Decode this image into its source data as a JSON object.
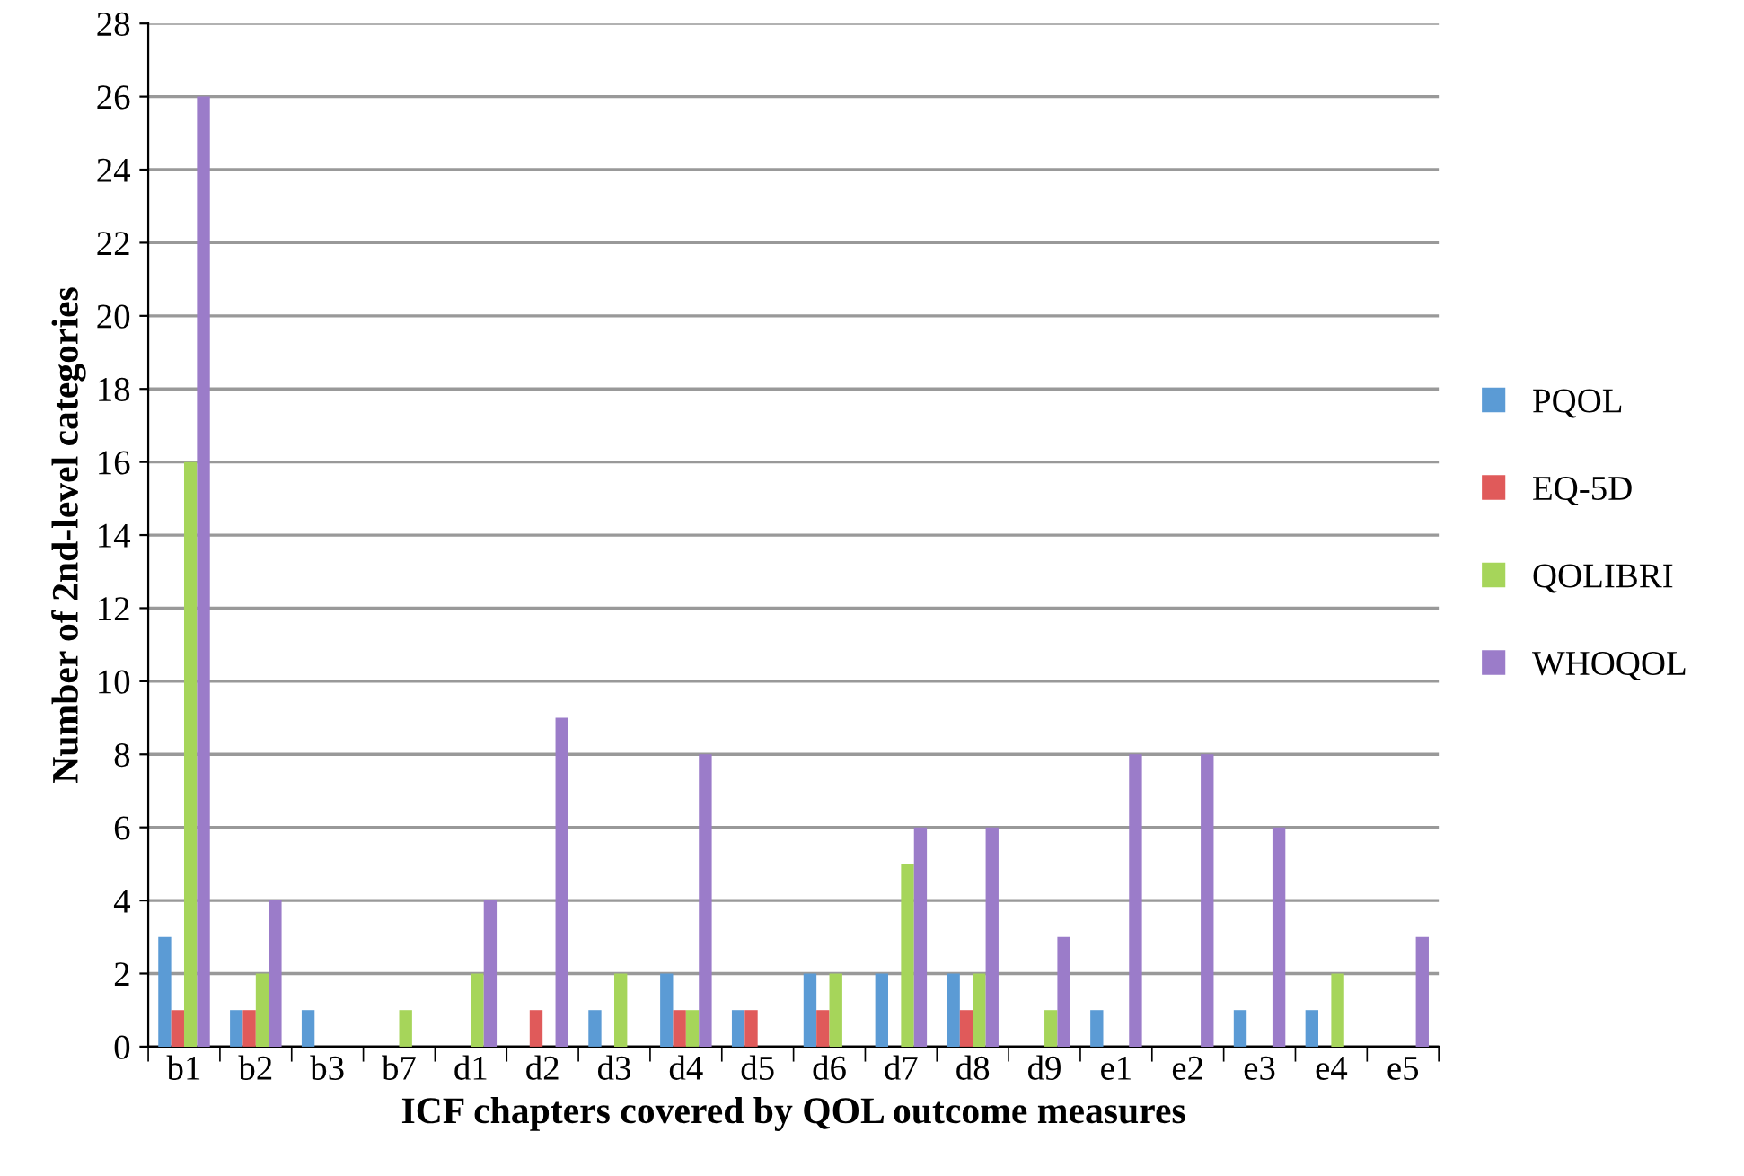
{
  "chart_data": {
    "type": "bar",
    "xlabel": "ICF chapters covered by QOL outcome measures",
    "ylabel": "Number of 2nd-level categories",
    "categories": [
      "b1",
      "b2",
      "b3",
      "b7",
      "d1",
      "d2",
      "d3",
      "d4",
      "d5",
      "d6",
      "d7",
      "d8",
      "d9",
      "e1",
      "e2",
      "e3",
      "e4",
      "e5"
    ],
    "series": [
      {
        "name": "PQOL",
        "color": "#5b9bd5",
        "values": [
          3,
          1,
          1,
          0,
          0,
          0,
          1,
          2,
          1,
          2,
          2,
          2,
          0,
          1,
          0,
          1,
          1,
          0
        ]
      },
      {
        "name": "EQ-5D",
        "color": "#e05a5a",
        "values": [
          1,
          1,
          0,
          0,
          0,
          1,
          0,
          1,
          1,
          1,
          0,
          1,
          0,
          0,
          0,
          0,
          0,
          0
        ]
      },
      {
        "name": "QOLIBRI",
        "color": "#a6d55a",
        "values": [
          16,
          2,
          0,
          1,
          2,
          0,
          2,
          1,
          0,
          2,
          5,
          2,
          1,
          0,
          0,
          0,
          2,
          0
        ]
      },
      {
        "name": "WHOQOL",
        "color": "#9b7cc9",
        "values": [
          26,
          4,
          0,
          0,
          4,
          9,
          0,
          8,
          0,
          0,
          6,
          6,
          3,
          8,
          8,
          6,
          0,
          3
        ]
      }
    ],
    "ylim": [
      0,
      28
    ],
    "yticks": [
      0,
      2,
      4,
      6,
      8,
      10,
      12,
      14,
      16,
      18,
      20,
      22,
      24,
      26,
      28
    ],
    "grid": "y",
    "legend": "right"
  }
}
